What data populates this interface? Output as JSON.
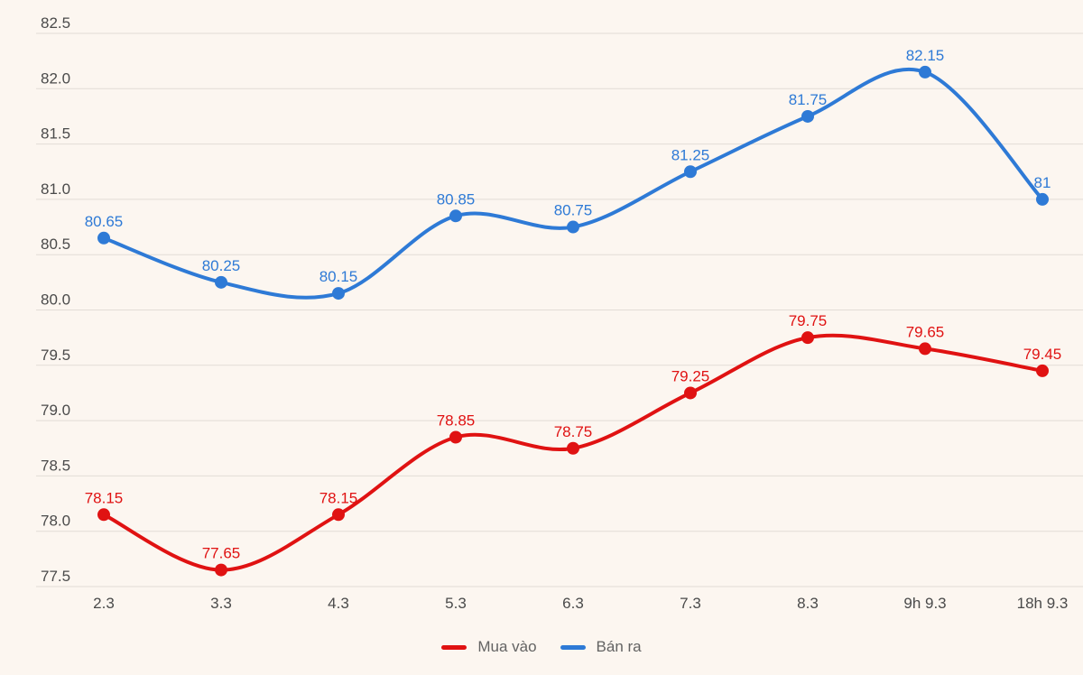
{
  "chart_data": {
    "type": "line",
    "categories": [
      "2.3",
      "3.3",
      "4.3",
      "5.3",
      "6.3",
      "7.3",
      "8.3",
      "9h 9.3",
      "18h 9.3"
    ],
    "series": [
      {
        "name": "Mua vào",
        "color": "#e01212",
        "values": [
          78.15,
          77.65,
          78.15,
          78.85,
          78.75,
          79.25,
          79.75,
          79.65,
          79.45
        ],
        "labels": [
          "78.15",
          "77.65",
          "78.15",
          "78.85",
          "78.75",
          "79.25",
          "79.75",
          "79.65",
          "79.45"
        ]
      },
      {
        "name": "Bán ra",
        "color": "#2e7ad6",
        "values": [
          80.65,
          80.25,
          80.15,
          80.85,
          80.75,
          81.25,
          81.75,
          82.15,
          81
        ],
        "labels": [
          "80.65",
          "80.25",
          "80.15",
          "80.85",
          "80.75",
          "81.25",
          "81.75",
          "82.15",
          "81"
        ]
      }
    ],
    "y_ticks": [
      "77.5",
      "78.0",
      "78.5",
      "79.0",
      "79.5",
      "80.0",
      "80.5",
      "81.0",
      "81.5",
      "82.0",
      "82.5"
    ],
    "ylim": [
      77.5,
      82.5
    ],
    "y_step": 0.5,
    "xlabel": "",
    "ylabel": "",
    "grid": true,
    "legend_position": "bottom-center"
  },
  "colors": {
    "background": "#fcf6f0",
    "gridline": "#e2dcd6",
    "axis_text": "#4a4a4a",
    "legend_text": "#636363"
  }
}
